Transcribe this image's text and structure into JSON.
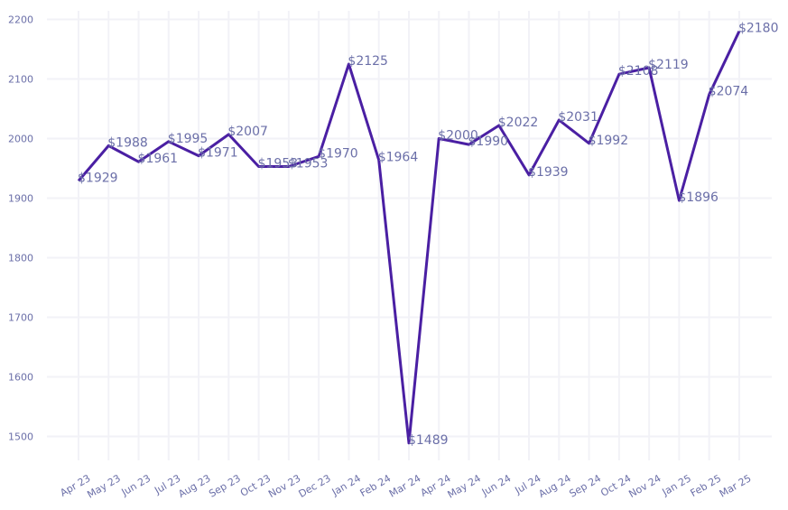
{
  "chart_data": {
    "type": "line",
    "title": "",
    "xlabel": "",
    "ylabel": "",
    "ylim": [
      1450,
      2200
    ],
    "yticks": [
      1500,
      1600,
      1700,
      1800,
      1900,
      2000,
      2100,
      2200
    ],
    "grid": true,
    "legend": "none",
    "line_color": "#4a1fa3",
    "label_color": "#6b6fa8",
    "categories": [
      "Apr 23",
      "May 23",
      "Jun 23",
      "Jul 23",
      "Aug 23",
      "Sep 23",
      "Oct 23",
      "Nov 23",
      "Dec 23",
      "Jan 24",
      "Feb 24",
      "Mar 24",
      "Apr 24",
      "May 24",
      "Jun 24",
      "Jul 24",
      "Aug 24",
      "Sep 24",
      "Oct 24",
      "Nov 24",
      "Jan 25",
      "Feb 25",
      "Mar 25"
    ],
    "series": [
      {
        "values": [
          1929,
          1988,
          1961,
          1995,
          1971,
          2007,
          1953,
          1953,
          1970,
          2125,
          1964,
          1489,
          2000,
          1990,
          2022,
          1939,
          2031,
          1992,
          2108,
          2119,
          1896,
          2074,
          2180
        ],
        "labels": [
          "$1929",
          "$1988",
          "$1961",
          "$1995",
          "$1971",
          "$2007",
          "$1953",
          "$1953",
          "$1970",
          "$2125",
          "$1964",
          "$1489",
          "$2000",
          "$1990",
          "$2022",
          "$1939",
          "$2031",
          "$1992",
          "$2108",
          "$2119",
          "$1896",
          "$2074",
          "$2180"
        ]
      }
    ]
  }
}
